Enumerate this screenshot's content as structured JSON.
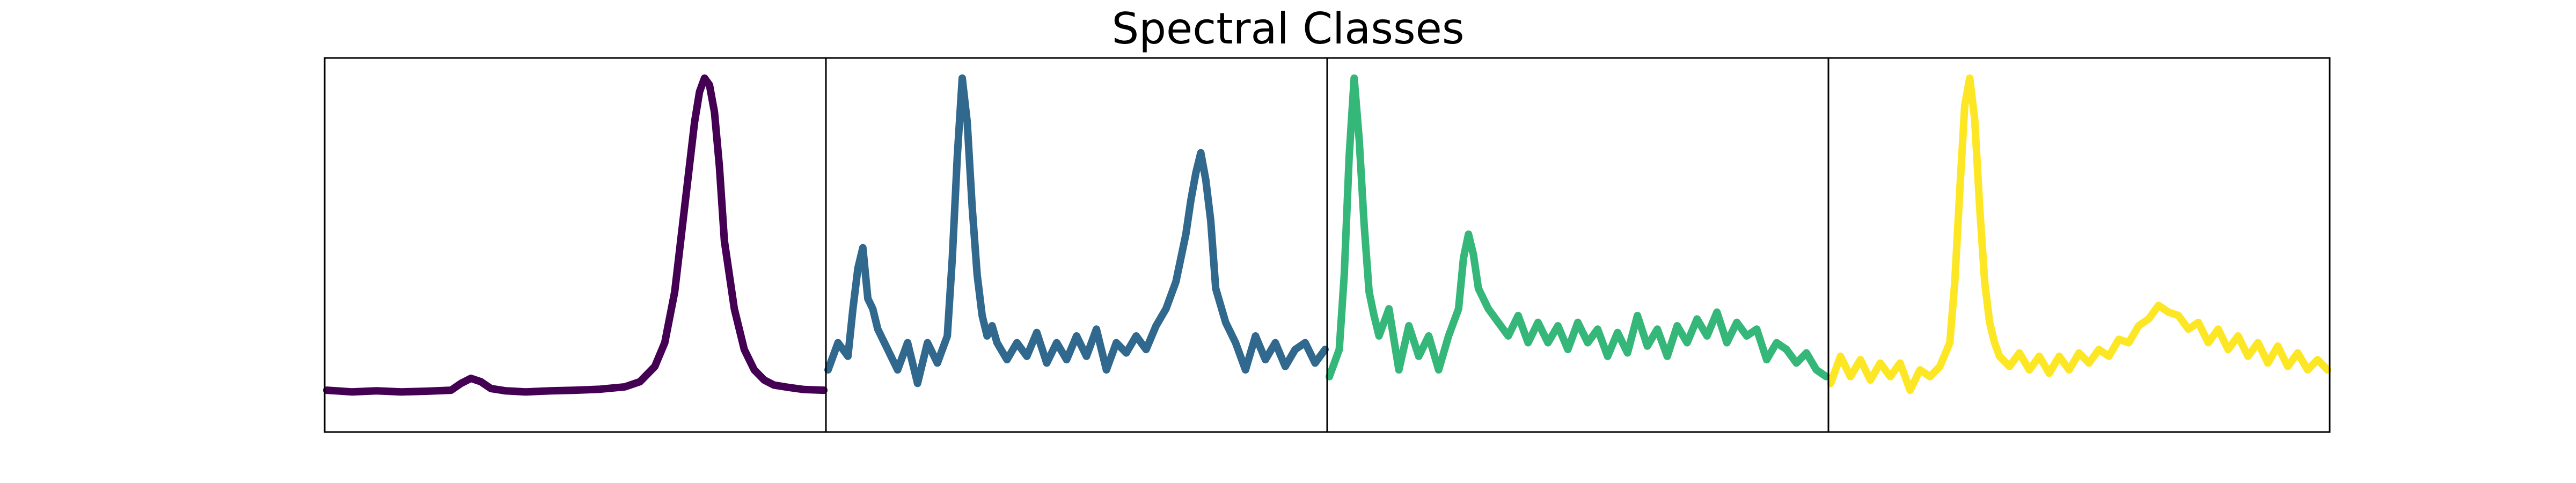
{
  "chart_data": {
    "type": "line",
    "title": "Spectral Classes",
    "xlabel": "",
    "ylabel": "",
    "axes_ticks": "none",
    "grid": false,
    "legend": "none",
    "x_range": [
      0,
      1
    ],
    "y_range": [
      0,
      1
    ],
    "panels": [
      {
        "color": "#440154",
        "x": [
          0.0,
          0.05,
          0.1,
          0.15,
          0.2,
          0.25,
          0.27,
          0.29,
          0.31,
          0.33,
          0.36,
          0.4,
          0.45,
          0.5,
          0.55,
          0.6,
          0.63,
          0.66,
          0.68,
          0.7,
          0.72,
          0.74,
          0.75,
          0.76,
          0.77,
          0.78,
          0.79,
          0.8,
          0.82,
          0.84,
          0.86,
          0.88,
          0.9,
          0.93,
          0.96,
          1.0
        ],
        "values": [
          0.06,
          0.055,
          0.058,
          0.055,
          0.057,
          0.06,
          0.08,
          0.095,
          0.085,
          0.065,
          0.058,
          0.055,
          0.058,
          0.06,
          0.063,
          0.07,
          0.085,
          0.13,
          0.2,
          0.35,
          0.6,
          0.85,
          0.94,
          0.98,
          0.96,
          0.88,
          0.72,
          0.5,
          0.3,
          0.18,
          0.12,
          0.09,
          0.075,
          0.068,
          0.062,
          0.06
        ]
      },
      {
        "color": "#31688e",
        "x": [
          0.0,
          0.02,
          0.04,
          0.05,
          0.06,
          0.07,
          0.08,
          0.09,
          0.1,
          0.12,
          0.14,
          0.16,
          0.18,
          0.2,
          0.22,
          0.24,
          0.25,
          0.26,
          0.27,
          0.28,
          0.29,
          0.3,
          0.31,
          0.32,
          0.33,
          0.34,
          0.36,
          0.38,
          0.4,
          0.42,
          0.44,
          0.46,
          0.48,
          0.5,
          0.52,
          0.54,
          0.56,
          0.58,
          0.6,
          0.62,
          0.64,
          0.66,
          0.68,
          0.7,
          0.72,
          0.73,
          0.74,
          0.75,
          0.76,
          0.77,
          0.78,
          0.8,
          0.82,
          0.84,
          0.86,
          0.88,
          0.9,
          0.92,
          0.94,
          0.96,
          0.98,
          1.0
        ],
        "values": [
          0.12,
          0.2,
          0.16,
          0.3,
          0.42,
          0.48,
          0.33,
          0.3,
          0.24,
          0.18,
          0.12,
          0.2,
          0.08,
          0.2,
          0.14,
          0.22,
          0.45,
          0.75,
          0.98,
          0.85,
          0.6,
          0.4,
          0.28,
          0.22,
          0.25,
          0.2,
          0.15,
          0.2,
          0.16,
          0.23,
          0.14,
          0.2,
          0.15,
          0.22,
          0.16,
          0.24,
          0.12,
          0.2,
          0.17,
          0.22,
          0.18,
          0.25,
          0.3,
          0.38,
          0.52,
          0.62,
          0.7,
          0.76,
          0.68,
          0.56,
          0.36,
          0.26,
          0.2,
          0.12,
          0.22,
          0.15,
          0.2,
          0.13,
          0.18,
          0.2,
          0.14,
          0.18
        ]
      },
      {
        "color": "#35b779",
        "x": [
          0.0,
          0.02,
          0.03,
          0.04,
          0.05,
          0.06,
          0.07,
          0.08,
          0.09,
          0.1,
          0.12,
          0.14,
          0.16,
          0.18,
          0.2,
          0.22,
          0.24,
          0.26,
          0.27,
          0.28,
          0.29,
          0.3,
          0.32,
          0.34,
          0.36,
          0.38,
          0.4,
          0.42,
          0.44,
          0.46,
          0.48,
          0.5,
          0.52,
          0.54,
          0.56,
          0.58,
          0.6,
          0.62,
          0.64,
          0.66,
          0.68,
          0.7,
          0.72,
          0.74,
          0.76,
          0.78,
          0.8,
          0.82,
          0.84,
          0.86,
          0.88,
          0.9,
          0.92,
          0.94,
          0.96,
          0.98,
          1.0
        ],
        "values": [
          0.1,
          0.18,
          0.4,
          0.75,
          0.98,
          0.8,
          0.55,
          0.35,
          0.28,
          0.22,
          0.3,
          0.12,
          0.25,
          0.16,
          0.22,
          0.12,
          0.22,
          0.3,
          0.45,
          0.52,
          0.46,
          0.36,
          0.3,
          0.26,
          0.22,
          0.28,
          0.2,
          0.26,
          0.2,
          0.25,
          0.18,
          0.26,
          0.2,
          0.24,
          0.16,
          0.23,
          0.17,
          0.28,
          0.19,
          0.24,
          0.16,
          0.25,
          0.2,
          0.27,
          0.22,
          0.29,
          0.2,
          0.26,
          0.22,
          0.24,
          0.15,
          0.2,
          0.18,
          0.14,
          0.17,
          0.12,
          0.1
        ]
      },
      {
        "color": "#fde725",
        "x": [
          0.0,
          0.02,
          0.04,
          0.06,
          0.08,
          0.1,
          0.12,
          0.14,
          0.16,
          0.18,
          0.2,
          0.22,
          0.24,
          0.25,
          0.26,
          0.27,
          0.28,
          0.29,
          0.3,
          0.31,
          0.32,
          0.33,
          0.34,
          0.36,
          0.38,
          0.4,
          0.42,
          0.44,
          0.46,
          0.48,
          0.5,
          0.52,
          0.54,
          0.56,
          0.58,
          0.6,
          0.62,
          0.64,
          0.66,
          0.68,
          0.7,
          0.72,
          0.74,
          0.76,
          0.78,
          0.8,
          0.82,
          0.84,
          0.86,
          0.88,
          0.9,
          0.92,
          0.94,
          0.96,
          0.98,
          1.0
        ],
        "values": [
          0.08,
          0.16,
          0.1,
          0.15,
          0.09,
          0.14,
          0.1,
          0.14,
          0.06,
          0.12,
          0.1,
          0.13,
          0.2,
          0.38,
          0.65,
          0.9,
          0.98,
          0.86,
          0.6,
          0.38,
          0.26,
          0.2,
          0.16,
          0.13,
          0.17,
          0.12,
          0.16,
          0.11,
          0.16,
          0.12,
          0.17,
          0.14,
          0.18,
          0.16,
          0.21,
          0.2,
          0.25,
          0.27,
          0.31,
          0.29,
          0.28,
          0.24,
          0.26,
          0.2,
          0.24,
          0.18,
          0.22,
          0.16,
          0.2,
          0.14,
          0.19,
          0.13,
          0.17,
          0.12,
          0.15,
          0.12
        ]
      }
    ]
  }
}
